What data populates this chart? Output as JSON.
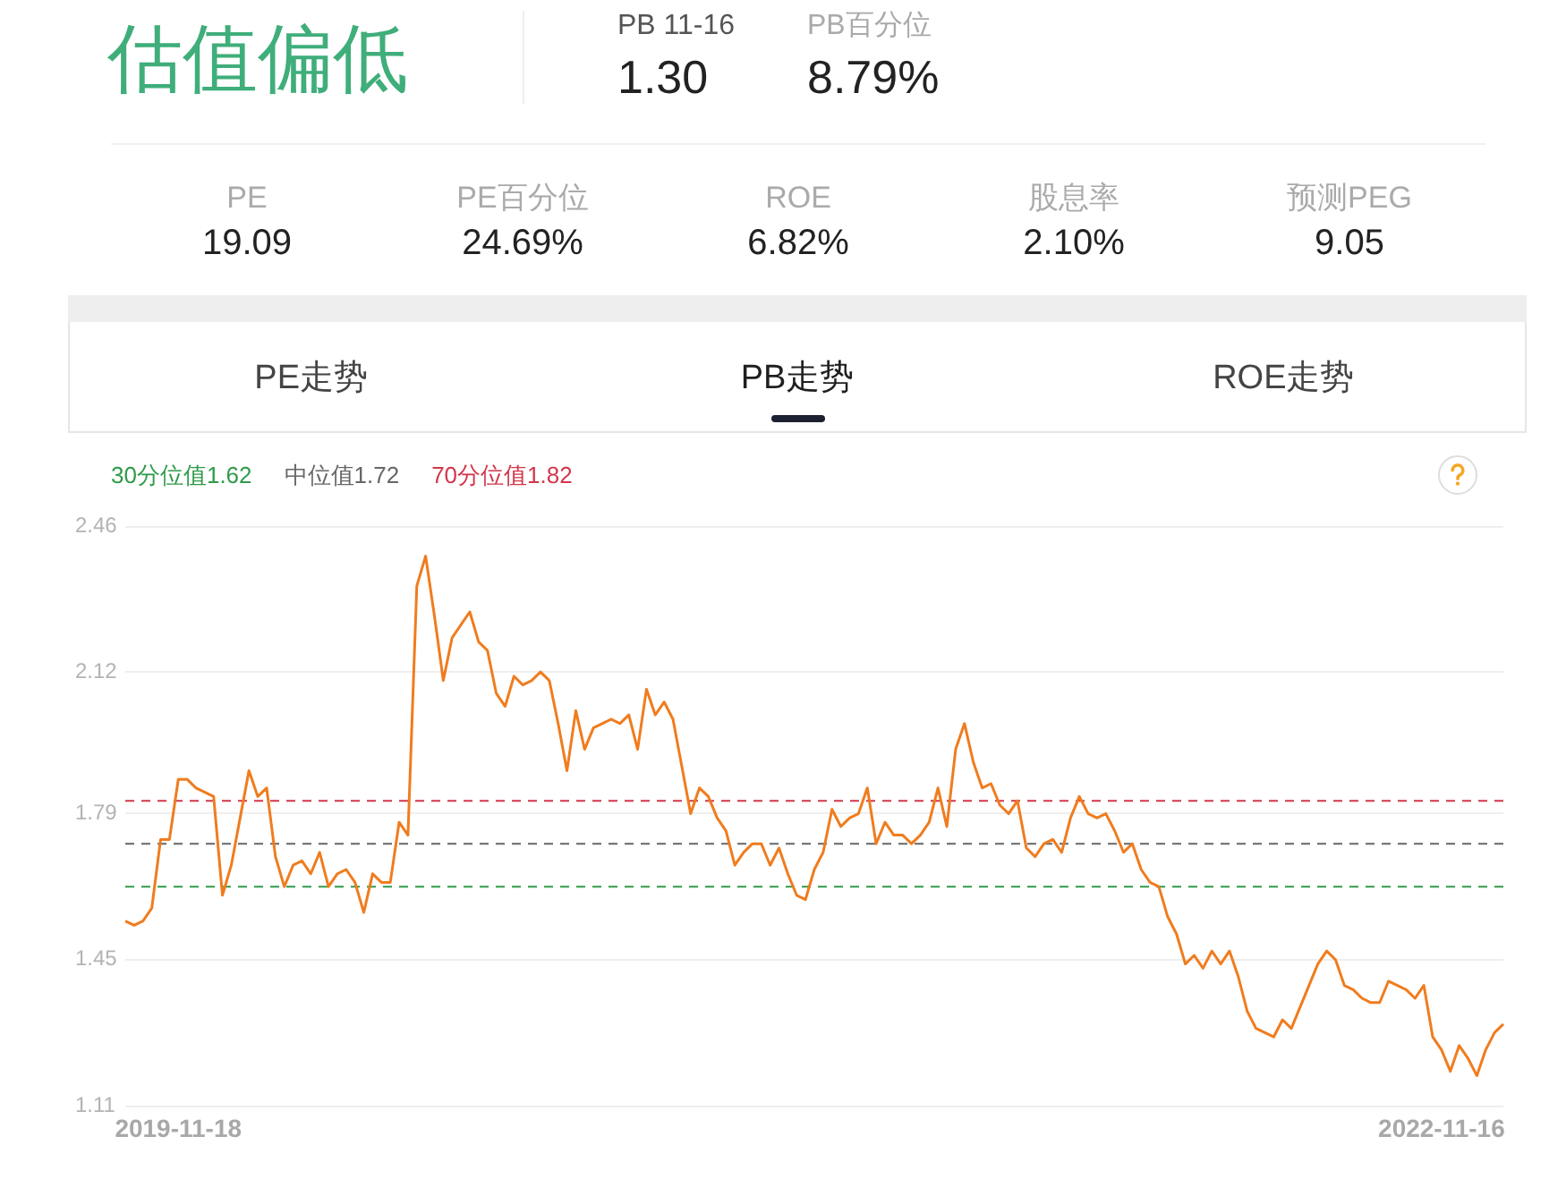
{
  "chart_data": [
    {
      "type": "other",
      "title": "估值偏低",
      "annotations": [
        "PB 11-16",
        "1.30",
        "PB百分位",
        "8.79%",
        "PE",
        "19.09",
        "PE百分位",
        "24.69%",
        "ROE",
        "6.82%",
        "股息率",
        "2.10%",
        "预测PEG",
        "9.05",
        "PE走势",
        "PB走势",
        "ROE走势"
      ]
    },
    {
      "type": "line",
      "categories": [
        null,
        null,
        null,
        null,
        null,
        null,
        "2019-11-18",
        null,
        null,
        null,
        null,
        null,
        null,
        null,
        null,
        null,
        null,
        null,
        null,
        null,
        null,
        null,
        null,
        null,
        null,
        null,
        null,
        null,
        null,
        null,
        null,
        null,
        null,
        null,
        null,
        null,
        null,
        null,
        null,
        null,
        null,
        null,
        null,
        null,
        null,
        null,
        null,
        null,
        null,
        null,
        null,
        null,
        null,
        null,
        null,
        null,
        null,
        null,
        null,
        null,
        null,
        null,
        null,
        null,
        null,
        null,
        null,
        null,
        null,
        null,
        null,
        null,
        null,
        null,
        null,
        null,
        null,
        null,
        null,
        null,
        null,
        null,
        null,
        null,
        null,
        null,
        null,
        null,
        null,
        null,
        null,
        null,
        null,
        null,
        null,
        null,
        null,
        null,
        null,
        null,
        null,
        null,
        null,
        null,
        null,
        null,
        null,
        null,
        null,
        null,
        null,
        null,
        null,
        null,
        null,
        null,
        null,
        null,
        null,
        null,
        null,
        null,
        null,
        null,
        null,
        null,
        null,
        null,
        null,
        null,
        null,
        null,
        null,
        null,
        null,
        null,
        null,
        null,
        null,
        null,
        null,
        null,
        null,
        null,
        null,
        null,
        null,
        null,
        null,
        "2022-11-16",
        null,
        null,
        null,
        null,
        null,
        null,
        null
      ],
      "values": [
        1.54,
        1.53,
        1.54,
        1.57,
        1.73,
        1.73,
        1.87,
        1.87,
        1.85,
        1.84,
        1.83,
        1.6,
        1.67,
        1.78,
        1.89,
        1.83,
        1.85,
        1.69,
        1.62,
        1.67,
        1.68,
        1.65,
        1.7,
        1.62,
        1.65,
        1.66,
        1.63,
        1.56,
        1.65,
        1.63,
        1.63,
        1.77,
        1.74,
        2.32,
        2.39,
        2.25,
        2.1,
        2.2,
        2.23,
        2.26,
        2.19,
        2.17,
        2.07,
        2.04,
        2.11,
        2.09,
        2.1,
        2.12,
        2.1,
        2.0,
        1.89,
        2.03,
        1.94,
        1.99,
        2.0,
        2.01,
        2.0,
        2.02,
        1.94,
        2.08,
        2.02,
        2.05,
        2.01,
        1.9,
        1.79,
        1.85,
        1.83,
        1.78,
        1.75,
        1.67,
        1.7,
        1.72,
        1.72,
        1.67,
        1.71,
        1.65,
        1.6,
        1.59,
        1.66,
        1.7,
        1.8,
        1.76,
        1.78,
        1.79,
        1.85,
        1.72,
        1.77,
        1.74,
        1.74,
        1.72,
        1.74,
        1.77,
        1.85,
        1.76,
        1.94,
        2.0,
        1.91,
        1.85,
        1.86,
        1.81,
        1.79,
        1.82,
        1.71,
        1.69,
        1.72,
        1.73,
        1.7,
        1.78,
        1.83,
        1.79,
        1.78,
        1.79,
        1.75,
        1.7,
        1.72,
        1.66,
        1.63,
        1.62,
        1.55,
        1.51,
        1.44,
        1.46,
        1.43,
        1.47,
        1.44,
        1.47,
        1.41,
        1.33,
        1.29,
        1.28,
        1.27,
        1.31,
        1.29,
        1.34,
        1.39,
        1.44,
        1.47,
        1.45,
        1.39,
        1.38,
        1.36,
        1.35,
        1.35,
        1.4,
        1.39,
        1.38,
        1.36,
        1.39,
        1.27,
        1.24,
        1.19,
        1.25,
        1.22,
        1.18,
        1.24,
        1.28,
        1.3
      ],
      "color": "#f07c1e",
      "ylim": [
        1.11,
        2.46
      ],
      "yticks": [
        1.11,
        1.45,
        1.79,
        2.12,
        2.46
      ],
      "grid": "y",
      "ref_lines": [
        {
          "axis": "y",
          "value": 1.62,
          "label": "30分位值1.62",
          "color": "#2f9b4a",
          "line_style": "dashed"
        },
        {
          "axis": "y",
          "value": 1.72,
          "label": "中位值1.72",
          "color": "#666666",
          "line_style": "dashed"
        },
        {
          "axis": "y",
          "value": 1.82,
          "label": "70分位值1.82",
          "color": "#d2364b",
          "line_style": "dashed"
        }
      ]
    }
  ]
}
